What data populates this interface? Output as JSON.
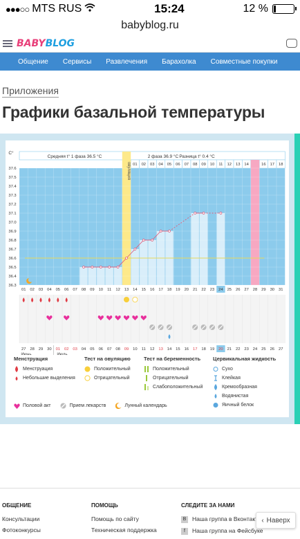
{
  "status": {
    "carrier": "MTS RUS",
    "time": "15:24",
    "battery": "12 %",
    "battery_level": 0.12
  },
  "browser": {
    "url": "babyblog.ru"
  },
  "site": {
    "logo_a": "BABY",
    "logo_b": "BLOG",
    "nav": [
      "Общение",
      "Сервисы",
      "Развлечения",
      "Барахолка",
      "Совместные покупки"
    ]
  },
  "page": {
    "breadcrumb": "Приложения",
    "title": "Графики базальной температуры"
  },
  "chart_data": {
    "type": "line",
    "unit": "C°",
    "ylim": [
      36.3,
      37.6
    ],
    "yticks": [
      "37.6",
      "37.5",
      "37.4",
      "37.3",
      "37.2",
      "37.1",
      "37.0",
      "36.9",
      "36.8",
      "36.7",
      "36.6",
      "36.5",
      "36.4",
      "36.3"
    ],
    "phase1": "Средняя t° 1 фаза 36.5 °C",
    "phase2": "2 фаза 36.9 °C",
    "diff": "Разница t° 0.4 °C",
    "ovulation_label": "овуляция",
    "cycle_days": [
      "01",
      "02",
      "03",
      "04",
      "05",
      "06",
      "07",
      "08",
      "09",
      "10",
      "11",
      "12",
      "13",
      "14",
      "15",
      "16",
      "17",
      "18",
      "19",
      "20",
      "21",
      "22",
      "23",
      "24",
      "25",
      "26",
      "27",
      "28",
      "29",
      "30",
      "31"
    ],
    "top_days": [
      "01",
      "02",
      "03",
      "04",
      "05",
      "06",
      "07",
      "08",
      "09",
      "10",
      "11",
      "12",
      "13",
      "14",
      "15",
      "16",
      "17",
      "18"
    ],
    "dates": [
      "27",
      "28",
      "29",
      "30",
      "01",
      "02",
      "03",
      "04",
      "05",
      "06",
      "07",
      "08",
      "09",
      "10",
      "11",
      "12",
      "13",
      "14",
      "15",
      "16",
      "17",
      "18",
      "19",
      "20",
      "21",
      "22",
      "23",
      "24",
      "25",
      "26",
      "27"
    ],
    "month_june": "Июнь",
    "month_july": "Июль",
    "temps": [
      null,
      null,
      null,
      null,
      null,
      null,
      null,
      36.5,
      36.5,
      36.5,
      36.5,
      36.5,
      36.6,
      36.7,
      36.8,
      36.8,
      36.9,
      36.9,
      null,
      null,
      37.1,
      37.1,
      null,
      37.1,
      null,
      null,
      null,
      null,
      null,
      null,
      null
    ],
    "ovulation_day": 13,
    "red_day": 28,
    "current_day": 24,
    "coverline": 36.6,
    "menstruation_days": [
      1,
      2,
      3,
      4,
      5,
      6
    ],
    "intercourse_days": [
      4,
      6,
      10,
      11,
      12,
      13,
      14,
      15
    ],
    "medication_days": [
      16,
      17,
      18,
      21,
      22,
      23,
      24
    ],
    "ovulation_test_positive": [
      13
    ],
    "ovulation_test_negative": [
      14
    ],
    "cervical_days": [
      18
    ]
  },
  "legend": {
    "menstruation": {
      "title": "Менструация",
      "items": [
        "Менструация",
        "Небольшие выделения"
      ]
    },
    "ovulation_test": {
      "title": "Тест на овуляцию",
      "items": [
        "Положительный",
        "Отрицательный"
      ]
    },
    "pregnancy_test": {
      "title": "Тест на беременность",
      "items": [
        "Положительный",
        "Отрицательный",
        "Слабоположительный"
      ]
    },
    "cervical": {
      "title": "Цервикальная жидкость",
      "items": [
        "Сухо",
        "Клейкая",
        "Кремообразная",
        "Водянистая",
        "Яичный белок"
      ]
    },
    "bottom": [
      "Половой акт",
      "Прием лекарств",
      "Лунный календарь"
    ]
  },
  "footer": {
    "col1": {
      "title": "ОБЩЕНИЕ",
      "items": [
        "Консультации",
        "Фотоконкурсы"
      ]
    },
    "col2": {
      "title": "ПОМОЩЬ",
      "items": [
        "Помощь по сайту",
        "Техническая поддержка"
      ]
    },
    "col3": {
      "title": "СЛЕДИТЕ ЗА НАМИ",
      "items": [
        "Наша группа в Вконтакте",
        "Наша группа на Фейсбуке"
      ]
    },
    "to_top": "Наверх"
  },
  "colors": {
    "nav": "#3e8ad0",
    "chart_bg": "#8ccbec",
    "bar": "#d9eefa",
    "ovulation": "#fde98a",
    "red_col": "#f7a8c2",
    "teal": "#2ad0b5",
    "pink": "#e8407a"
  }
}
